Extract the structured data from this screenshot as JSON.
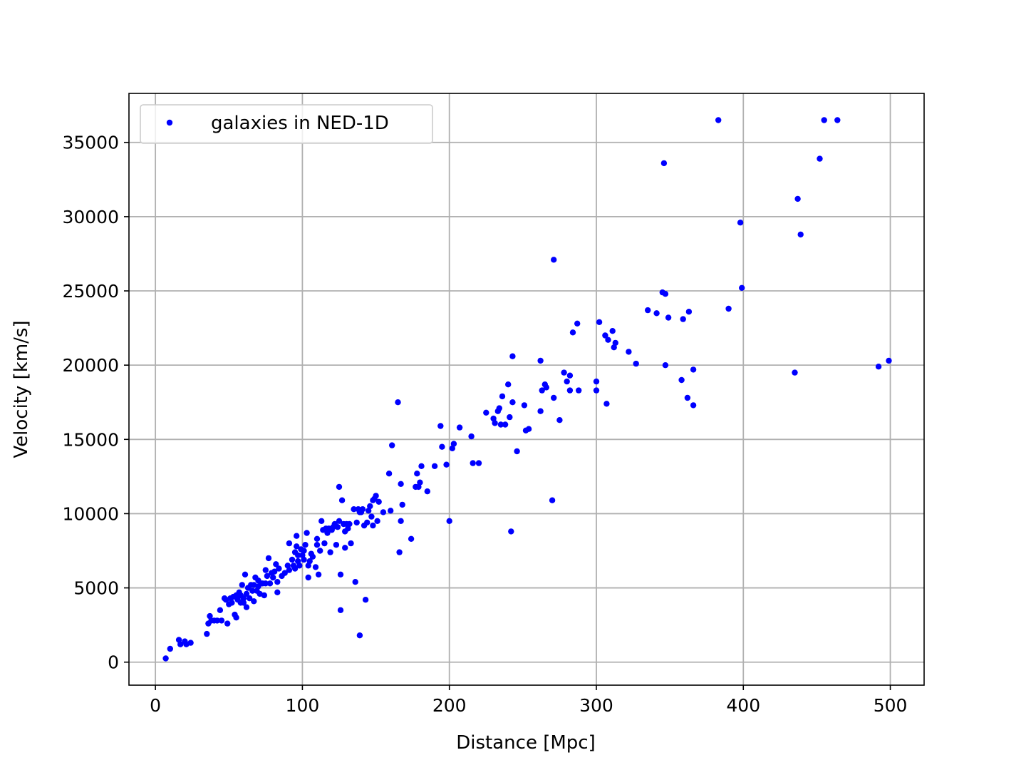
{
  "chart_data": {
    "type": "scatter",
    "title": "",
    "xlabel": "Distance [Mpc]",
    "ylabel": "Velocity [km/s]",
    "xlim": [
      -18,
      523
    ],
    "ylim": [
      -1550,
      38300
    ],
    "x_ticks": [
      0,
      100,
      200,
      300,
      400,
      500
    ],
    "y_ticks": [
      0,
      5000,
      10000,
      15000,
      20000,
      25000,
      30000,
      35000
    ],
    "grid": true,
    "legend_position": "top-left",
    "series": [
      {
        "name": "galaxies in NED-1D",
        "color": "#0000ff",
        "marker": "circle",
        "points": [
          [
            7,
            250
          ],
          [
            10,
            900
          ],
          [
            16,
            1500
          ],
          [
            17,
            1200
          ],
          [
            20,
            1400
          ],
          [
            21,
            1200
          ],
          [
            24,
            1300
          ],
          [
            35,
            1900
          ],
          [
            36,
            2600
          ],
          [
            37,
            3100
          ],
          [
            38,
            2800
          ],
          [
            40,
            2800
          ],
          [
            42,
            2800
          ],
          [
            44,
            3500
          ],
          [
            45,
            2800
          ],
          [
            47,
            4300
          ],
          [
            48,
            4200
          ],
          [
            49,
            2600
          ],
          [
            50,
            3900
          ],
          [
            51,
            4300
          ],
          [
            52,
            4000
          ],
          [
            53,
            4400
          ],
          [
            54,
            3200
          ],
          [
            55,
            3000
          ],
          [
            55,
            4500
          ],
          [
            56,
            4200
          ],
          [
            57,
            4700
          ],
          [
            58,
            4000
          ],
          [
            58,
            4500
          ],
          [
            59,
            5200
          ],
          [
            60,
            4300
          ],
          [
            60,
            4000
          ],
          [
            61,
            5900
          ],
          [
            62,
            4600
          ],
          [
            62,
            3700
          ],
          [
            63,
            5000
          ],
          [
            64,
            4300
          ],
          [
            65,
            5200
          ],
          [
            66,
            4800
          ],
          [
            67,
            4100
          ],
          [
            67,
            5200
          ],
          [
            68,
            5700
          ],
          [
            69,
            4800
          ],
          [
            70,
            5100
          ],
          [
            70,
            5500
          ],
          [
            71,
            4600
          ],
          [
            72,
            5300
          ],
          [
            73,
            5300
          ],
          [
            74,
            4500
          ],
          [
            75,
            5300
          ],
          [
            75,
            6200
          ],
          [
            76,
            5800
          ],
          [
            77,
            7000
          ],
          [
            78,
            5300
          ],
          [
            79,
            6000
          ],
          [
            80,
            5700
          ],
          [
            81,
            6100
          ],
          [
            82,
            6600
          ],
          [
            83,
            5400
          ],
          [
            83,
            4700
          ],
          [
            84,
            6300
          ],
          [
            86,
            5800
          ],
          [
            88,
            6000
          ],
          [
            90,
            6500
          ],
          [
            91,
            6200
          ],
          [
            91,
            8000
          ],
          [
            93,
            6900
          ],
          [
            94,
            6500
          ],
          [
            95,
            6300
          ],
          [
            95,
            7400
          ],
          [
            96,
            8500
          ],
          [
            96,
            7800
          ],
          [
            97,
            6800
          ],
          [
            97,
            7200
          ],
          [
            98,
            6500
          ],
          [
            99,
            7600
          ],
          [
            100,
            7200
          ],
          [
            101,
            6900
          ],
          [
            101,
            7500
          ],
          [
            102,
            7900
          ],
          [
            103,
            8700
          ],
          [
            104,
            5700
          ],
          [
            104,
            6500
          ],
          [
            105,
            6800
          ],
          [
            106,
            7300
          ],
          [
            107,
            7100
          ],
          [
            109,
            6400
          ],
          [
            110,
            7900
          ],
          [
            110,
            8300
          ],
          [
            111,
            5900
          ],
          [
            112,
            7500
          ],
          [
            113,
            9500
          ],
          [
            114,
            8900
          ],
          [
            115,
            8000
          ],
          [
            116,
            9000
          ],
          [
            117,
            8700
          ],
          [
            118,
            9000
          ],
          [
            119,
            7400
          ],
          [
            120,
            8900
          ],
          [
            121,
            9100
          ],
          [
            122,
            9300
          ],
          [
            123,
            7900
          ],
          [
            124,
            9100
          ],
          [
            125,
            11800
          ],
          [
            125,
            9500
          ],
          [
            126,
            5900
          ],
          [
            126,
            3500
          ],
          [
            127,
            10900
          ],
          [
            128,
            9300
          ],
          [
            129,
            7700
          ],
          [
            129,
            8800
          ],
          [
            130,
            9300
          ],
          [
            131,
            9000
          ],
          [
            132,
            9300
          ],
          [
            133,
            8000
          ],
          [
            135,
            10300
          ],
          [
            136,
            5400
          ],
          [
            137,
            9400
          ],
          [
            138,
            10300
          ],
          [
            139,
            10100
          ],
          [
            139,
            1800
          ],
          [
            140,
            10100
          ],
          [
            141,
            10300
          ],
          [
            142,
            9200
          ],
          [
            143,
            4200
          ],
          [
            144,
            9400
          ],
          [
            145,
            10200
          ],
          [
            146,
            10500
          ],
          [
            147,
            9800
          ],
          [
            148,
            9200
          ],
          [
            148,
            10900
          ],
          [
            149,
            11000
          ],
          [
            150,
            11200
          ],
          [
            151,
            9500
          ],
          [
            152,
            10800
          ],
          [
            155,
            10100
          ],
          [
            159,
            12700
          ],
          [
            160,
            10200
          ],
          [
            161,
            14600
          ],
          [
            165,
            17500
          ],
          [
            166,
            7400
          ],
          [
            167,
            12000
          ],
          [
            167,
            9500
          ],
          [
            168,
            10600
          ],
          [
            174,
            8300
          ],
          [
            177,
            11800
          ],
          [
            178,
            12700
          ],
          [
            179,
            11800
          ],
          [
            180,
            12100
          ],
          [
            181,
            13200
          ],
          [
            185,
            11500
          ],
          [
            190,
            13200
          ],
          [
            194,
            15900
          ],
          [
            195,
            14500
          ],
          [
            198,
            13300
          ],
          [
            200,
            9500
          ],
          [
            202,
            14400
          ],
          [
            203,
            14700
          ],
          [
            207,
            15800
          ],
          [
            215,
            15200
          ],
          [
            216,
            13400
          ],
          [
            220,
            13400
          ],
          [
            225,
            16800
          ],
          [
            230,
            16400
          ],
          [
            231,
            16100
          ],
          [
            233,
            16900
          ],
          [
            234,
            17100
          ],
          [
            235,
            16000
          ],
          [
            236,
            17900
          ],
          [
            238,
            16000
          ],
          [
            240,
            18700
          ],
          [
            241,
            16500
          ],
          [
            242,
            8800
          ],
          [
            243,
            20600
          ],
          [
            243,
            17500
          ],
          [
            246,
            14200
          ],
          [
            251,
            17300
          ],
          [
            252,
            15600
          ],
          [
            254,
            15700
          ],
          [
            262,
            20300
          ],
          [
            262,
            16900
          ],
          [
            263,
            18300
          ],
          [
            265,
            18700
          ],
          [
            266,
            18500
          ],
          [
            270,
            10900
          ],
          [
            271,
            27100
          ],
          [
            271,
            17800
          ],
          [
            275,
            16300
          ],
          [
            278,
            19500
          ],
          [
            280,
            18900
          ],
          [
            282,
            19300
          ],
          [
            282,
            18300
          ],
          [
            284,
            22200
          ],
          [
            287,
            22800
          ],
          [
            288,
            18300
          ],
          [
            300,
            18900
          ],
          [
            300,
            18300
          ],
          [
            302,
            22900
          ],
          [
            306,
            22000
          ],
          [
            307,
            17400
          ],
          [
            308,
            21700
          ],
          [
            311,
            22300
          ],
          [
            312,
            21200
          ],
          [
            313,
            21500
          ],
          [
            322,
            20900
          ],
          [
            327,
            20100
          ],
          [
            335,
            23700
          ],
          [
            341,
            23500
          ],
          [
            345,
            24900
          ],
          [
            346,
            33600
          ],
          [
            347,
            24800
          ],
          [
            347,
            20000
          ],
          [
            349,
            23200
          ],
          [
            358,
            19000
          ],
          [
            359,
            23100
          ],
          [
            362,
            17800
          ],
          [
            363,
            23600
          ],
          [
            366,
            19700
          ],
          [
            366,
            17300
          ],
          [
            383,
            36500
          ],
          [
            390,
            23800
          ],
          [
            398,
            29600
          ],
          [
            399,
            25200
          ],
          [
            435,
            19500
          ],
          [
            437,
            31200
          ],
          [
            439,
            28800
          ],
          [
            452,
            33900
          ],
          [
            455,
            36500
          ],
          [
            464,
            36500
          ],
          [
            492,
            19900
          ],
          [
            499,
            20300
          ]
        ]
      }
    ]
  }
}
